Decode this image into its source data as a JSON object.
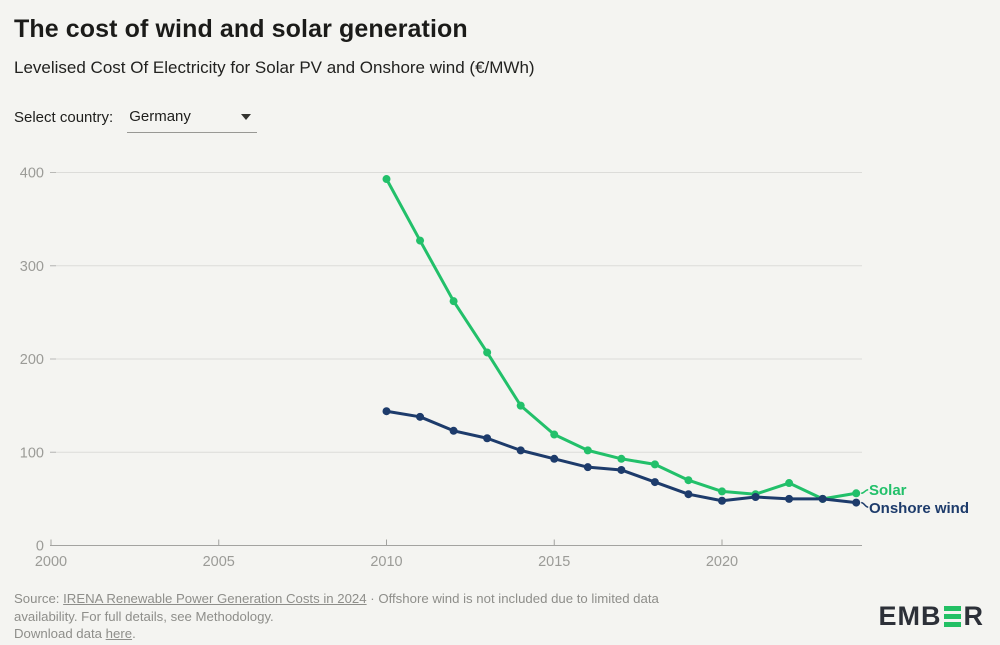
{
  "colors": {
    "background": "#f4f4f1",
    "solar_green": "#22c06a",
    "wind_navy": "#1d3b6b",
    "gridline": "#dcdcd9",
    "axis": "#a3a3a0",
    "tick_text": "#9b9b97"
  },
  "controls": {
    "label": "Select country:",
    "value": "Germany"
  },
  "chart_data": {
    "type": "line",
    "title": "The cost of wind and solar generation",
    "subtitle": "Levelised Cost Of Electricity for Solar PV and Onshore wind (€/MWh)",
    "x": [
      2010,
      2011,
      2012,
      2013,
      2014,
      2015,
      2016,
      2017,
      2018,
      2019,
      2020,
      2021,
      2022,
      2023,
      2024
    ],
    "series": [
      {
        "name": "Solar",
        "color": "#22c06a",
        "values": [
          393,
          327,
          262,
          207,
          150,
          119,
          102,
          93,
          87,
          70,
          58,
          55,
          67,
          50,
          56
        ]
      },
      {
        "name": "Onshore wind",
        "color": "#1d3b6b",
        "values": [
          144,
          138,
          123,
          115,
          102,
          93,
          84,
          81,
          68,
          55,
          48,
          52,
          50,
          50,
          46
        ]
      }
    ],
    "xlabel": "",
    "ylabel": "",
    "xticks": [
      2000,
      2005,
      2010,
      2015,
      2020
    ],
    "yticks": [
      0,
      100,
      200,
      300,
      400
    ],
    "xlim": [
      2000,
      2024.3
    ],
    "ylim": [
      0,
      400
    ],
    "grid": "horizontal",
    "legend_position": "labels at right end of lines",
    "marker": "circle"
  },
  "footer": {
    "line1_prefix": "Source: ",
    "line1_link": "IRENA Renewable Power Generation Costs in 2024",
    "line1_rest": " · Offshore wind is not included due to limited data",
    "line2": "availability. For full details, see Methodology.",
    "line3_prefix": "Download data ",
    "line3_link": "here",
    "line3_suffix": "."
  },
  "logo": {
    "left": "EMB",
    "right": "R"
  }
}
